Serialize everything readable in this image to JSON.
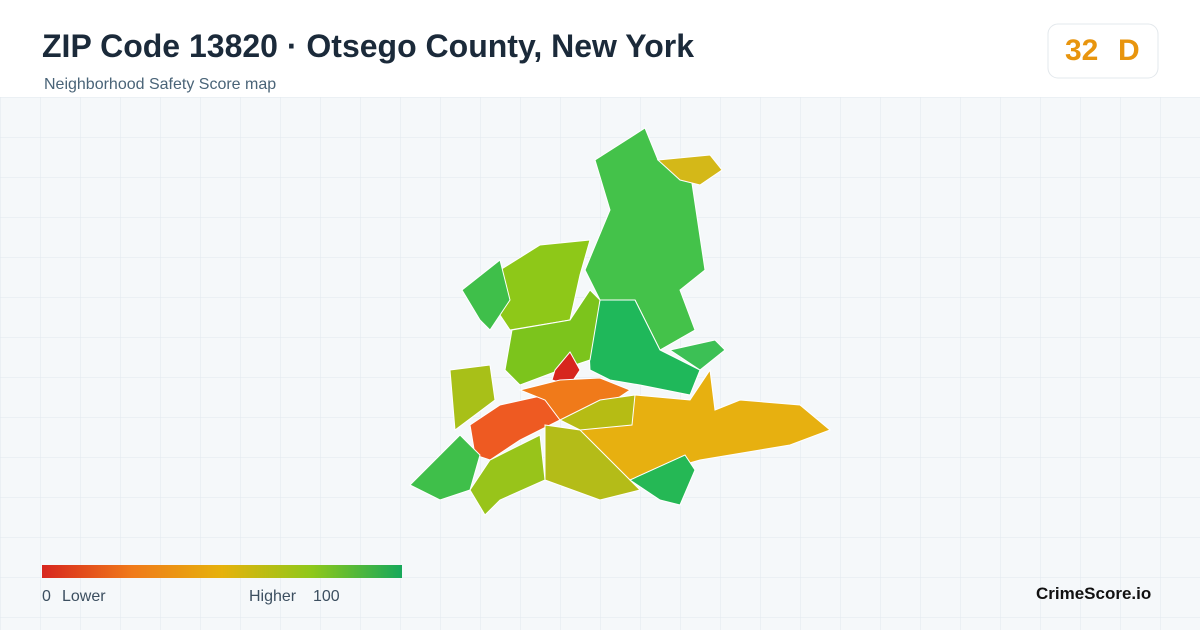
{
  "header": {
    "title": "ZIP Code 13820 · Otsego County, New York",
    "subtitle": "Neighborhood Safety Score map"
  },
  "score": {
    "value": "32",
    "grade": "D"
  },
  "legend": {
    "min": "0",
    "min_label": "Lower",
    "max_label": "Higher",
    "max": "100"
  },
  "footer": {
    "brand": "CrimeScore.io"
  }
}
